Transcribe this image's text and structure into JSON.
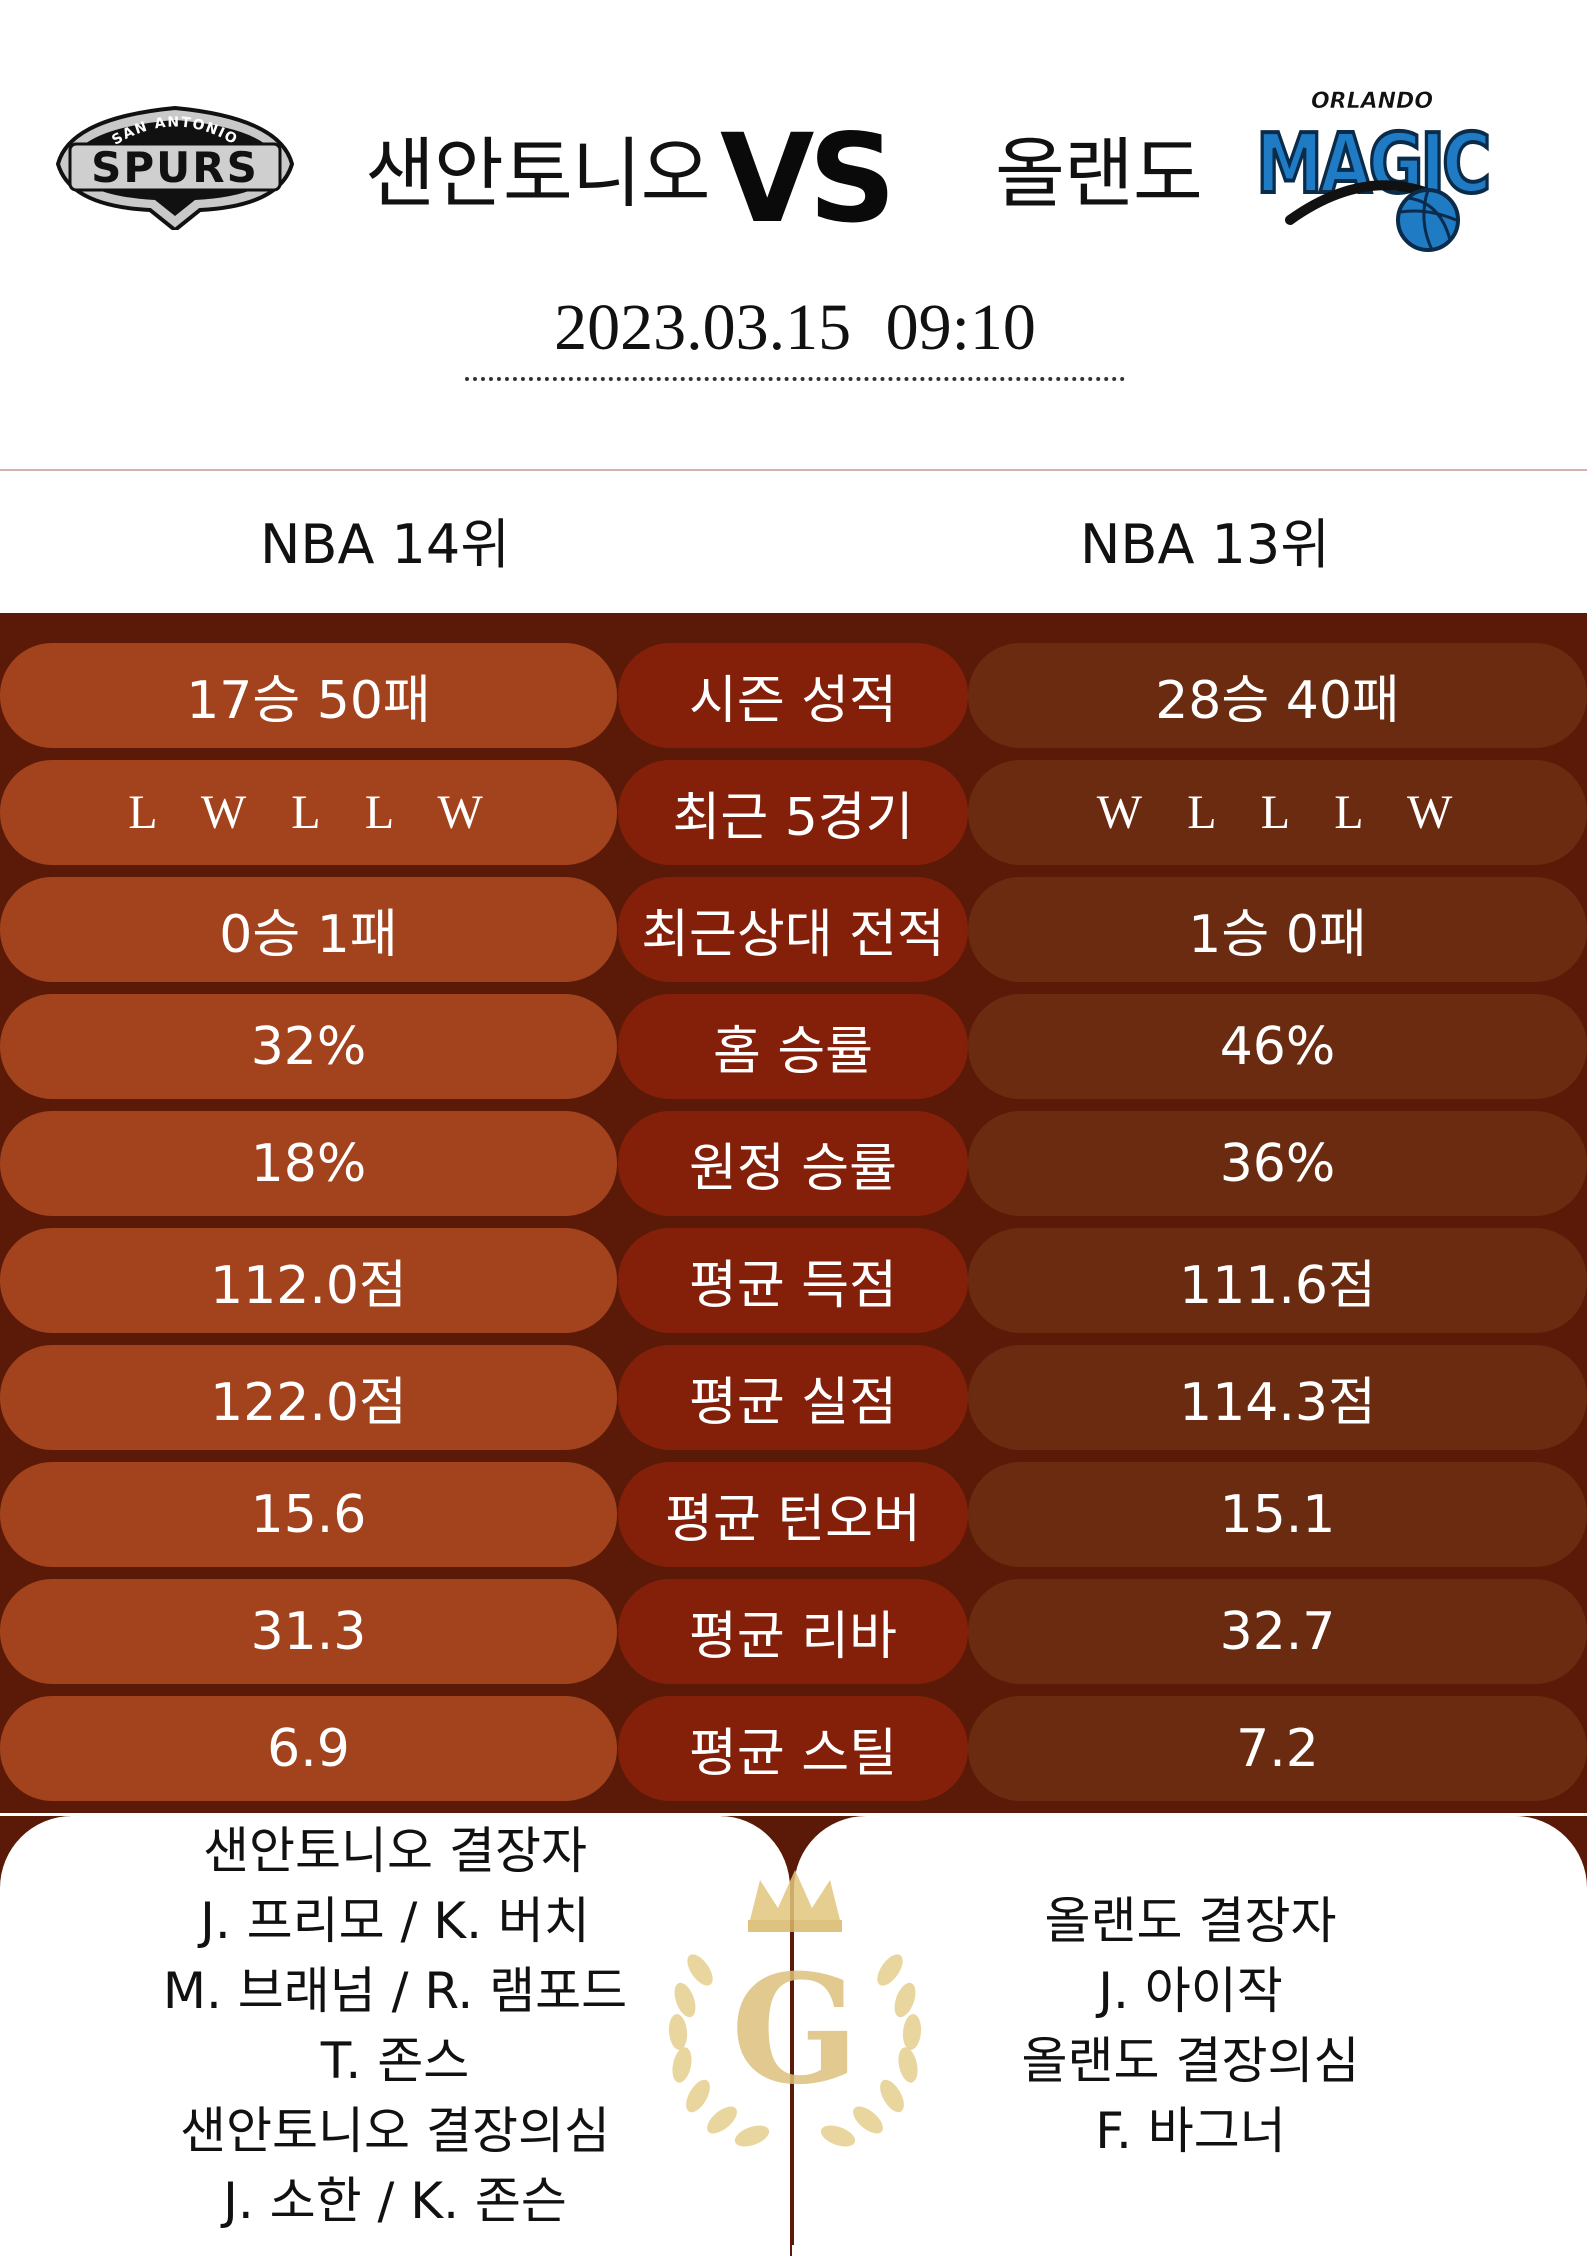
{
  "header": {
    "home_team": "샌안토니오",
    "away_team": "올랜도",
    "vs": "VS",
    "datetime": "2023.03.15  09:10",
    "home_logo_text": {
      "top": "SAN ANTONIO",
      "main": "SPURS"
    },
    "away_logo_text": {
      "top": "ORLANDO",
      "main": "MAGIC"
    }
  },
  "ranks": {
    "home": "NBA 14위",
    "away": "NBA 13위"
  },
  "colors": {
    "background_dark": "#5a1a07",
    "home_pill": "#a3431d",
    "label_pill": "#84200a",
    "away_pill": "#6a2b10",
    "gold": "#d9b86b"
  },
  "stats": [
    {
      "label": "시즌 성적",
      "home": "17승 50패",
      "away": "28승 40패"
    },
    {
      "label": "최근 5경기",
      "home": "L W L L W",
      "away": "W L L L W"
    },
    {
      "label": "최근상대 전적",
      "home": "0승 1패",
      "away": "1승 0패"
    },
    {
      "label": "홈 승률",
      "home": "32%",
      "away": "46%"
    },
    {
      "label": "원정 승률",
      "home": "18%",
      "away": "36%"
    },
    {
      "label": "평균 득점",
      "home": "112.0점",
      "away": "111.6점"
    },
    {
      "label": "평균 실점",
      "home": "122.0점",
      "away": "114.3점"
    },
    {
      "label": "평균 턴오버",
      "home": "15.6",
      "away": "15.1"
    },
    {
      "label": "평균 리바",
      "home": "31.3",
      "away": "32.7"
    },
    {
      "label": "평균 스틸",
      "home": "6.9",
      "away": "7.2"
    }
  ],
  "injuries": {
    "home": [
      "샌안토니오 결장자",
      "J. 프리모 / K. 버치",
      "M. 브래넘 / R. 램포드",
      "T. 존스",
      "샌안토니오 결장의심",
      "J. 소한 / K. 존슨"
    ],
    "away": [
      "올랜도 결장자",
      "J. 아이작",
      "올랜도 결장의심",
      "F. 바그너"
    ]
  },
  "crest": {
    "letter": "G",
    "icon": "crown-laurel-icon"
  }
}
